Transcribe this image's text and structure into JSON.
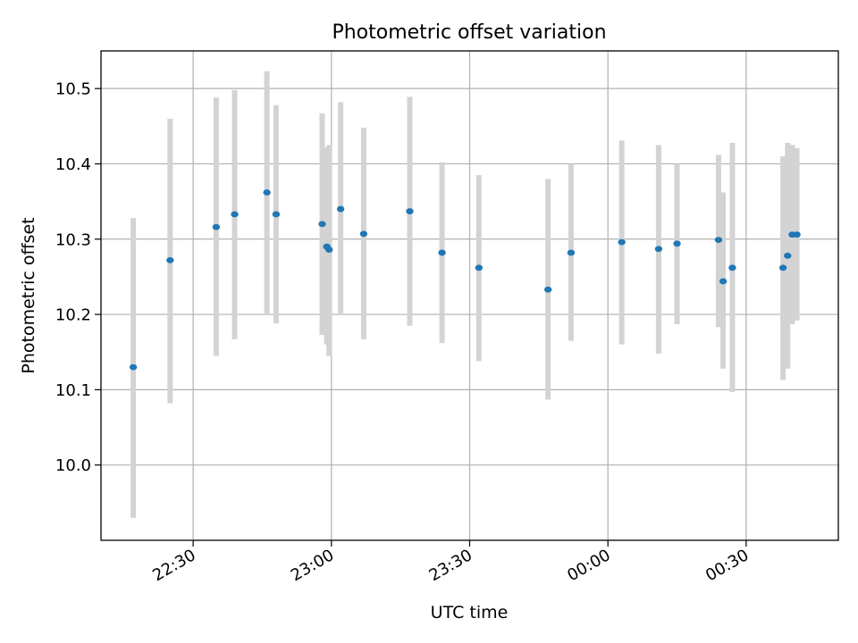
{
  "chart_data": {
    "type": "scatter",
    "title": "Photometric offset variation",
    "xlabel": "UTC time",
    "ylabel": "Photometric offset",
    "grid": true,
    "xlim": [
      "22:10",
      "00:50"
    ],
    "ylim": [
      9.9,
      10.55
    ],
    "xticks": [
      "22:30",
      "23:00",
      "23:30",
      "00:00",
      "00:30"
    ],
    "yticks": [
      10.0,
      10.1,
      10.2,
      10.3,
      10.4,
      10.5
    ],
    "colors": {
      "point": "#1f77b4",
      "errorbar": "#d3d3d3",
      "grid": "#b0b0b0"
    },
    "points": [
      {
        "x": "22:17",
        "y": 10.13,
        "ylow": 9.93,
        "yhigh": 10.328
      },
      {
        "x": "22:25",
        "y": 10.272,
        "ylow": 10.082,
        "yhigh": 10.46
      },
      {
        "x": "22:35",
        "y": 10.316,
        "ylow": 10.145,
        "yhigh": 10.488
      },
      {
        "x": "22:39",
        "y": 10.333,
        "ylow": 10.167,
        "yhigh": 10.498
      },
      {
        "x": "22:46",
        "y": 10.362,
        "ylow": 10.2,
        "yhigh": 10.523
      },
      {
        "x": "22:48",
        "y": 10.333,
        "ylow": 10.188,
        "yhigh": 10.478
      },
      {
        "x": "22:58",
        "y": 10.32,
        "ylow": 10.173,
        "yhigh": 10.467
      },
      {
        "x": "22:59",
        "y": 10.29,
        "ylow": 10.16,
        "yhigh": 10.422
      },
      {
        "x": "22:59.5",
        "y": 10.286,
        "ylow": 10.145,
        "yhigh": 10.425
      },
      {
        "x": "23:02",
        "y": 10.34,
        "ylow": 10.2,
        "yhigh": 10.482
      },
      {
        "x": "23:07",
        "y": 10.307,
        "ylow": 10.167,
        "yhigh": 10.448
      },
      {
        "x": "23:17",
        "y": 10.337,
        "ylow": 10.185,
        "yhigh": 10.489
      },
      {
        "x": "23:24",
        "y": 10.282,
        "ylow": 10.162,
        "yhigh": 10.402
      },
      {
        "x": "23:32",
        "y": 10.262,
        "ylow": 10.138,
        "yhigh": 10.385
      },
      {
        "x": "23:47",
        "y": 10.233,
        "ylow": 10.087,
        "yhigh": 10.38
      },
      {
        "x": "23:52",
        "y": 10.282,
        "ylow": 10.165,
        "yhigh": 10.4
      },
      {
        "x": "00:03",
        "y": 10.296,
        "ylow": 10.16,
        "yhigh": 10.431
      },
      {
        "x": "00:11",
        "y": 10.287,
        "ylow": 10.148,
        "yhigh": 10.425
      },
      {
        "x": "00:15",
        "y": 10.294,
        "ylow": 10.187,
        "yhigh": 10.4
      },
      {
        "x": "00:24",
        "y": 10.299,
        "ylow": 10.183,
        "yhigh": 10.412
      },
      {
        "x": "00:25",
        "y": 10.244,
        "ylow": 10.128,
        "yhigh": 10.362
      },
      {
        "x": "00:27",
        "y": 10.262,
        "ylow": 10.097,
        "yhigh": 10.428
      },
      {
        "x": "00:38",
        "y": 10.262,
        "ylow": 10.113,
        "yhigh": 10.41
      },
      {
        "x": "00:39",
        "y": 10.278,
        "ylow": 10.128,
        "yhigh": 10.428
      },
      {
        "x": "00:40",
        "y": 10.306,
        "ylow": 10.187,
        "yhigh": 10.425
      },
      {
        "x": "00:41",
        "y": 10.306,
        "ylow": 10.192,
        "yhigh": 10.421
      }
    ]
  }
}
